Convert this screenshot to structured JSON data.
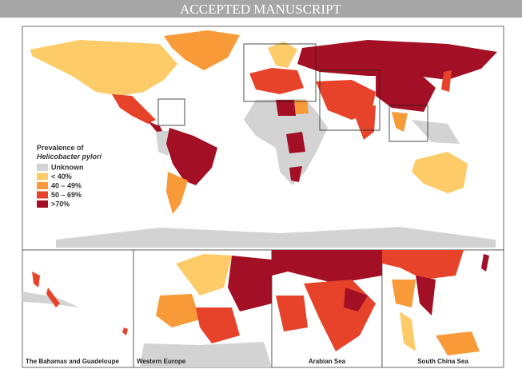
{
  "header": {
    "title": "ACCEPTED MANUSCRIPT"
  },
  "legend": {
    "title": "Prevalence of",
    "subtitle": "Helicobacter pylori",
    "items": [
      {
        "label": "Unknown",
        "color": "#d3d3d3"
      },
      {
        "label": "< 40%",
        "color": "#fdcb67"
      },
      {
        "label": "40 – 49%",
        "color": "#f89a38"
      },
      {
        "label": "50 – 69%",
        "color": "#e6432a"
      },
      {
        "label": ">70%",
        "color": "#a30f24"
      }
    ]
  },
  "insets": [
    {
      "label": "The Bahamas and Guadeloupe"
    },
    {
      "label": "Western Europe"
    },
    {
      "label": "Arabian Sea"
    },
    {
      "label": "South China Sea"
    }
  ]
}
